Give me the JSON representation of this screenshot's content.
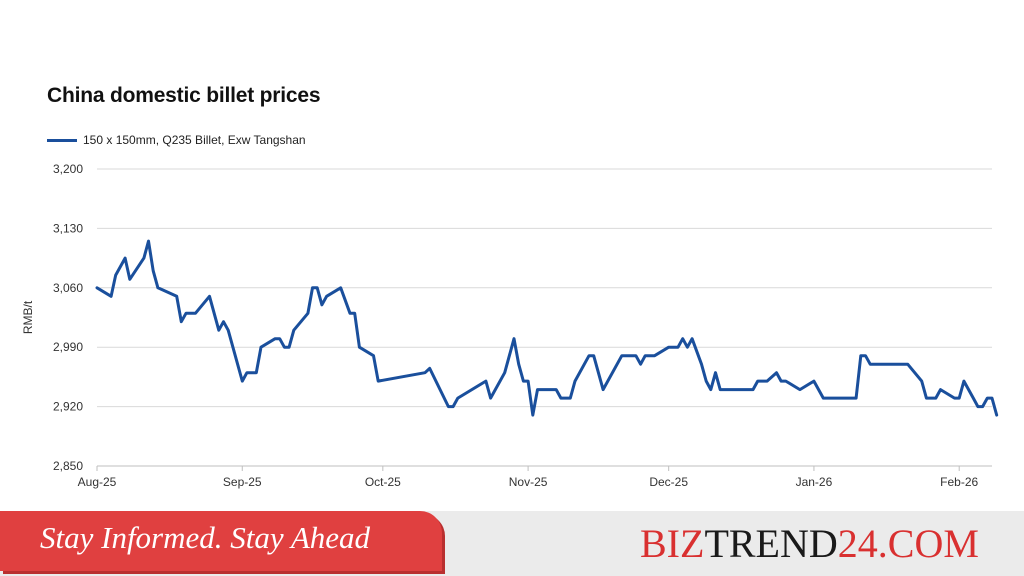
{
  "colors": {
    "series": "#1a4f9c",
    "grid": "#d9d9d9",
    "banner": "#e04040",
    "brand_red": "#d93030",
    "brand_dark": "#1a1a1a"
  },
  "footer": {
    "tagline": "Stay Informed. Stay Ahead",
    "brand_part1": "BIZ",
    "brand_part2": "TREND",
    "brand_part3": "24",
    "brand_part4": ".COM"
  },
  "chart_data": {
    "type": "line",
    "title": "China domestic billet prices",
    "ylabel": "RMB/t",
    "xlabel": "",
    "ylim": [
      2850,
      3200
    ],
    "yticks": [
      2850,
      2920,
      2990,
      3060,
      3130,
      3200
    ],
    "ytick_labels": [
      "2,850",
      "2,920",
      "2,990",
      "3,060",
      "3,130",
      "3,200"
    ],
    "xlim": [
      "2025-08-01",
      "2026-02-08"
    ],
    "xticks": [
      {
        "date": "2025-08-01",
        "label": "Aug-25"
      },
      {
        "date": "2025-09-01",
        "label": "Sep-25"
      },
      {
        "date": "2025-10-01",
        "label": "Oct-25"
      },
      {
        "date": "2025-11-01",
        "label": "Nov-25"
      },
      {
        "date": "2025-12-01",
        "label": "Dec-25"
      },
      {
        "date": "2026-01-01",
        "label": "Jan-26"
      },
      {
        "date": "2026-02-01",
        "label": "Feb-26"
      }
    ],
    "grid": "horizontal",
    "legend_position": "top-left",
    "series": [
      {
        "name": "150 x 150mm, Q235 Billet, Exw Tangshan",
        "points": [
          [
            "2025-08-01",
            3060
          ],
          [
            "2025-08-04",
            3050
          ],
          [
            "2025-08-05",
            3075
          ],
          [
            "2025-08-07",
            3095
          ],
          [
            "2025-08-08",
            3070
          ],
          [
            "2025-08-11",
            3095
          ],
          [
            "2025-08-12",
            3115
          ],
          [
            "2025-08-13",
            3080
          ],
          [
            "2025-08-14",
            3060
          ],
          [
            "2025-08-18",
            3050
          ],
          [
            "2025-08-19",
            3020
          ],
          [
            "2025-08-20",
            3030
          ],
          [
            "2025-08-22",
            3030
          ],
          [
            "2025-08-25",
            3050
          ],
          [
            "2025-08-27",
            3010
          ],
          [
            "2025-08-28",
            3020
          ],
          [
            "2025-08-29",
            3010
          ],
          [
            "2025-09-01",
            2950
          ],
          [
            "2025-09-02",
            2960
          ],
          [
            "2025-09-04",
            2960
          ],
          [
            "2025-09-05",
            2990
          ],
          [
            "2025-09-08",
            3000
          ],
          [
            "2025-09-09",
            3000
          ],
          [
            "2025-09-10",
            2990
          ],
          [
            "2025-09-11",
            2990
          ],
          [
            "2025-09-12",
            3010
          ],
          [
            "2025-09-15",
            3030
          ],
          [
            "2025-09-16",
            3060
          ],
          [
            "2025-09-17",
            3060
          ],
          [
            "2025-09-18",
            3040
          ],
          [
            "2025-09-19",
            3050
          ],
          [
            "2025-09-22",
            3060
          ],
          [
            "2025-09-24",
            3030
          ],
          [
            "2025-09-25",
            3030
          ],
          [
            "2025-09-26",
            2990
          ],
          [
            "2025-09-29",
            2980
          ],
          [
            "2025-09-30",
            2950
          ],
          [
            "2025-10-10",
            2960
          ],
          [
            "2025-10-11",
            2965
          ],
          [
            "2025-10-15",
            2920
          ],
          [
            "2025-10-16",
            2920
          ],
          [
            "2025-10-17",
            2930
          ],
          [
            "2025-10-23",
            2950
          ],
          [
            "2025-10-24",
            2930
          ],
          [
            "2025-10-27",
            2960
          ],
          [
            "2025-10-29",
            3000
          ],
          [
            "2025-10-30",
            2970
          ],
          [
            "2025-10-31",
            2950
          ],
          [
            "2025-11-01",
            2950
          ],
          [
            "2025-11-02",
            2910
          ],
          [
            "2025-11-03",
            2940
          ],
          [
            "2025-11-07",
            2940
          ],
          [
            "2025-11-08",
            2930
          ],
          [
            "2025-11-10",
            2930
          ],
          [
            "2025-11-11",
            2950
          ],
          [
            "2025-11-14",
            2980
          ],
          [
            "2025-11-15",
            2980
          ],
          [
            "2025-11-17",
            2940
          ],
          [
            "2025-11-21",
            2980
          ],
          [
            "2025-11-24",
            2980
          ],
          [
            "2025-11-25",
            2970
          ],
          [
            "2025-11-26",
            2980
          ],
          [
            "2025-11-28",
            2980
          ],
          [
            "2025-12-01",
            2990
          ],
          [
            "2025-12-03",
            2990
          ],
          [
            "2025-12-04",
            3000
          ],
          [
            "2025-12-05",
            2990
          ],
          [
            "2025-12-06",
            3000
          ],
          [
            "2025-12-08",
            2970
          ],
          [
            "2025-12-09",
            2950
          ],
          [
            "2025-12-10",
            2940
          ],
          [
            "2025-12-11",
            2960
          ],
          [
            "2025-12-12",
            2940
          ],
          [
            "2025-12-19",
            2940
          ],
          [
            "2025-12-20",
            2950
          ],
          [
            "2025-12-22",
            2950
          ],
          [
            "2025-12-24",
            2960
          ],
          [
            "2025-12-25",
            2950
          ],
          [
            "2025-12-26",
            2950
          ],
          [
            "2025-12-29",
            2940
          ],
          [
            "2026-01-01",
            2950
          ],
          [
            "2026-01-03",
            2930
          ],
          [
            "2026-01-10",
            2930
          ],
          [
            "2026-01-11",
            2980
          ],
          [
            "2026-01-12",
            2980
          ],
          [
            "2026-01-13",
            2970
          ],
          [
            "2026-01-21",
            2970
          ],
          [
            "2026-01-24",
            2950
          ],
          [
            "2026-01-25",
            2930
          ],
          [
            "2026-01-27",
            2930
          ],
          [
            "2026-01-28",
            2940
          ],
          [
            "2026-01-31",
            2930
          ],
          [
            "2026-02-01",
            2930
          ],
          [
            "2026-02-02",
            2950
          ],
          [
            "2026-02-04",
            2930
          ],
          [
            "2026-02-05",
            2920
          ],
          [
            "2026-02-06",
            2920
          ],
          [
            "2026-02-07",
            2930
          ],
          [
            "2026-02-08",
            2930
          ],
          [
            "2026-02-09",
            2910
          ]
        ]
      }
    ]
  }
}
